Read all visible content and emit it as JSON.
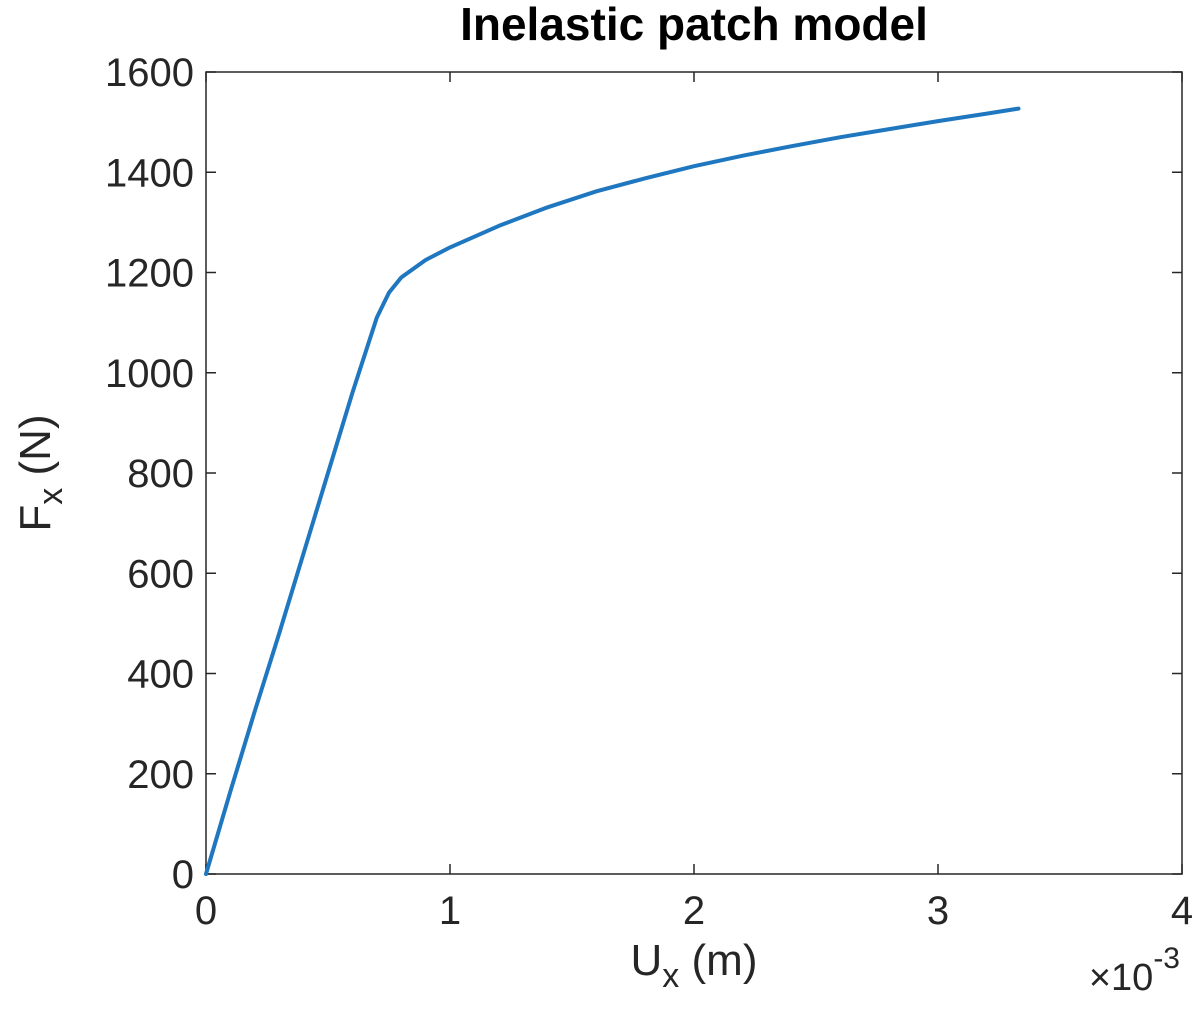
{
  "chart_data": {
    "type": "line",
    "title": "Inelastic patch model",
    "xlabel": {
      "base": "U",
      "sub": "x",
      "rest": " (m)"
    },
    "ylabel": {
      "base": "F",
      "sub": "x",
      "rest": " (N)"
    },
    "x_multiplier": {
      "prefix": "×10",
      "power": "-3"
    },
    "xlim": [
      0,
      4
    ],
    "ylim": [
      0,
      1600
    ],
    "xticks": [
      0,
      1,
      2,
      3,
      4
    ],
    "yticks": [
      0,
      200,
      400,
      600,
      800,
      1000,
      1200,
      1400,
      1600
    ],
    "grid": false,
    "line_color": "#1f77c0",
    "series": [
      {
        "x": [
          0,
          0.1,
          0.2,
          0.3,
          0.4,
          0.5,
          0.6,
          0.7,
          0.75,
          0.8,
          0.9,
          1.0,
          1.2,
          1.4,
          1.6,
          1.8,
          2.0,
          2.2,
          2.4,
          2.6,
          2.8,
          3.0,
          3.2,
          3.33
        ],
        "y": [
          0,
          165,
          325,
          480,
          640,
          800,
          960,
          1110,
          1160,
          1190,
          1225,
          1250,
          1293,
          1330,
          1362,
          1388,
          1412,
          1433,
          1452,
          1470,
          1486,
          1502,
          1517,
          1527
        ]
      }
    ]
  }
}
